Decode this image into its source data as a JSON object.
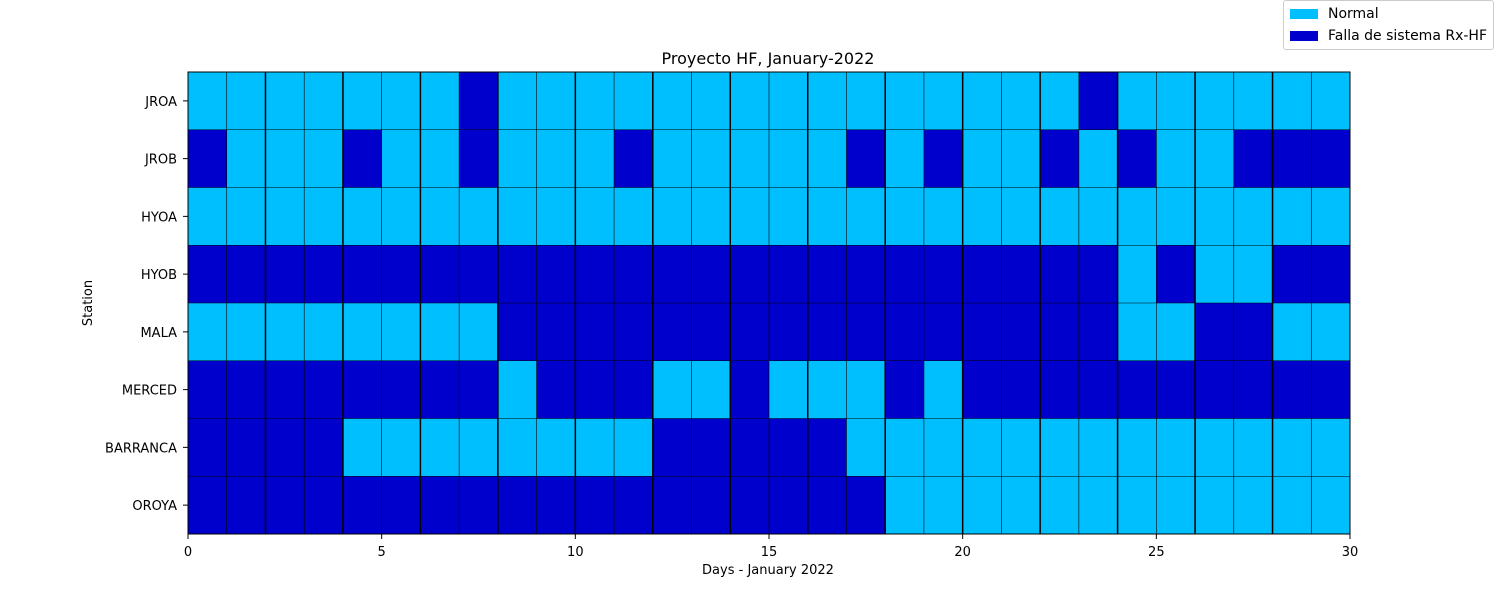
{
  "chart_data": {
    "type": "heatmap",
    "title": "Proyecto HF, January-2022",
    "xlabel": "Days - January 2022",
    "ylabel": "Station",
    "xlim": [
      0,
      30
    ],
    "x_ticks": [
      0,
      5,
      10,
      15,
      20,
      25,
      30
    ],
    "x_tick_labels": [
      "0",
      "5",
      "10",
      "15",
      "20",
      "25",
      "30"
    ],
    "stations": [
      "JROA",
      "JROB",
      "HYOA",
      "HYOB",
      "MALA",
      "MERCED",
      "BARRANCA",
      "OROYA"
    ],
    "status_codes": {
      "0": "Falla de  sistema Rx-HF",
      "1": "Normal"
    },
    "colors": {
      "normal": "#00BFFF",
      "falla": "#0000CD",
      "grid": "#000000"
    },
    "legend": [
      {
        "label": "Normal",
        "color": "#00BFFF"
      },
      {
        "label": "Falla de  sistema Rx-HF",
        "color": "#0000CD"
      }
    ],
    "legend_position": "top-right",
    "values": [
      [
        1,
        1,
        1,
        1,
        1,
        1,
        1,
        0,
        1,
        1,
        1,
        1,
        1,
        1,
        1,
        1,
        1,
        1,
        1,
        1,
        1,
        1,
        1,
        0,
        1,
        1,
        1,
        1,
        1,
        1
      ],
      [
        0,
        1,
        1,
        1,
        0,
        1,
        1,
        0,
        1,
        1,
        1,
        0,
        1,
        1,
        1,
        1,
        1,
        0,
        1,
        0,
        1,
        1,
        0,
        1,
        0,
        1,
        1,
        0,
        0,
        0
      ],
      [
        1,
        1,
        1,
        1,
        1,
        1,
        1,
        1,
        1,
        1,
        1,
        1,
        1,
        1,
        1,
        1,
        1,
        1,
        1,
        1,
        1,
        1,
        1,
        1,
        1,
        1,
        1,
        1,
        1,
        1
      ],
      [
        0,
        0,
        0,
        0,
        0,
        0,
        0,
        0,
        0,
        0,
        0,
        0,
        0,
        0,
        0,
        0,
        0,
        0,
        0,
        0,
        0,
        0,
        0,
        0,
        1,
        0,
        1,
        1,
        0,
        0
      ],
      [
        1,
        1,
        1,
        1,
        1,
        1,
        1,
        1,
        0,
        0,
        0,
        0,
        0,
        0,
        0,
        0,
        0,
        0,
        0,
        0,
        0,
        0,
        0,
        0,
        1,
        1,
        0,
        0,
        1,
        1
      ],
      [
        0,
        0,
        0,
        0,
        0,
        0,
        0,
        0,
        1,
        0,
        0,
        0,
        1,
        1,
        0,
        1,
        1,
        1,
        0,
        1,
        0,
        0,
        0,
        0,
        0,
        0,
        0,
        0,
        0,
        0
      ],
      [
        0,
        0,
        0,
        0,
        1,
        1,
        1,
        1,
        1,
        1,
        1,
        1,
        0,
        0,
        0,
        0,
        0,
        1,
        1,
        1,
        1,
        1,
        1,
        1,
        1,
        1,
        1,
        1,
        1,
        1
      ],
      [
        0,
        0,
        0,
        0,
        0,
        0,
        0,
        0,
        0,
        0,
        0,
        0,
        0,
        0,
        0,
        0,
        0,
        0,
        1,
        1,
        1,
        1,
        1,
        1,
        1,
        1,
        1,
        1,
        1,
        1
      ]
    ]
  }
}
